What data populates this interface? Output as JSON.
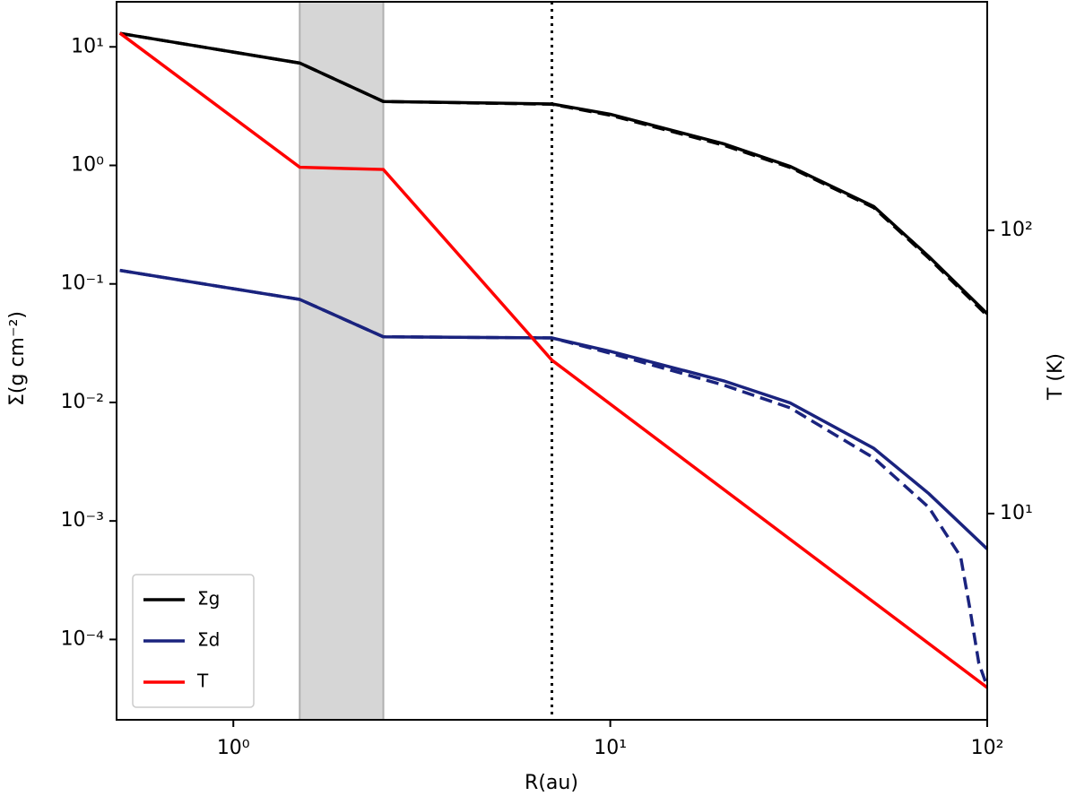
{
  "chart_data": {
    "type": "line",
    "x_label": "R(au)",
    "y_label": "Σ(g cm⁻²)",
    "y2_label": "T (K)",
    "xscale": "log",
    "yscale": "log",
    "y2scale": "log",
    "xlim": [
      0.49,
      100
    ],
    "ylim": [
      2.1e-05,
      24
    ],
    "y2lim": [
      1.87,
      641
    ],
    "xticks": [
      {
        "value": 1,
        "label": "10⁰"
      },
      {
        "value": 10,
        "label": "10¹"
      },
      {
        "value": 100,
        "label": "10²"
      }
    ],
    "yticks": [
      {
        "value": 0.0001,
        "label": "10⁻⁴"
      },
      {
        "value": 0.001,
        "label": "10⁻³"
      },
      {
        "value": 0.01,
        "label": "10⁻²"
      },
      {
        "value": 0.1,
        "label": "10⁻¹"
      },
      {
        "value": 1,
        "label": "10⁰"
      },
      {
        "value": 10,
        "label": "10¹"
      }
    ],
    "y2ticks": [
      {
        "value": 10,
        "label": "10¹"
      },
      {
        "value": 100,
        "label": "10²"
      }
    ],
    "shaded_region": [
      1.5,
      2.5
    ],
    "shaded_color": "#d6d6d6",
    "vline": 7,
    "legend": "lower left",
    "series": [
      {
        "name": "Σg",
        "color": "#000000",
        "x": [
          0.5,
          1.5,
          2.5,
          7,
          10,
          20,
          30,
          50,
          70,
          100
        ],
        "values": [
          13,
          7.3,
          3.46,
          3.3,
          2.7,
          1.52,
          0.98,
          0.45,
          0.17,
          0.056
        ]
      },
      {
        "color": "#000000",
        "dash": true,
        "x": [
          0.5,
          1.5,
          2.5,
          7,
          10,
          20,
          30,
          50,
          70,
          100
        ],
        "values": [
          13,
          7.3,
          3.46,
          3.28,
          2.65,
          1.48,
          0.96,
          0.44,
          0.165,
          0.054
        ]
      },
      {
        "name": "Σd",
        "color": "#1a237e",
        "x": [
          0.5,
          1.5,
          2.5,
          7,
          10,
          20,
          30,
          50,
          70,
          100
        ],
        "values": [
          0.13,
          0.074,
          0.0358,
          0.035,
          0.027,
          0.0152,
          0.0099,
          0.0041,
          0.0017,
          0.00058
        ]
      },
      {
        "color": "#1a237e",
        "dash": true,
        "x": [
          0.5,
          1.5,
          2.5,
          7,
          10,
          20,
          30,
          50,
          70,
          85,
          90,
          95,
          100
        ],
        "values": [
          0.13,
          0.074,
          0.0358,
          0.035,
          0.026,
          0.014,
          0.009,
          0.0034,
          0.0013,
          0.0005,
          0.00018,
          6.3e-05,
          4e-05
        ]
      },
      {
        "name": "T",
        "color": "#ff0000",
        "axis": "y2",
        "x": [
          0.5,
          1.5,
          2.5,
          7,
          100
        ],
        "values": [
          497,
          167,
          164,
          34.8,
          2.43
        ]
      }
    ]
  }
}
